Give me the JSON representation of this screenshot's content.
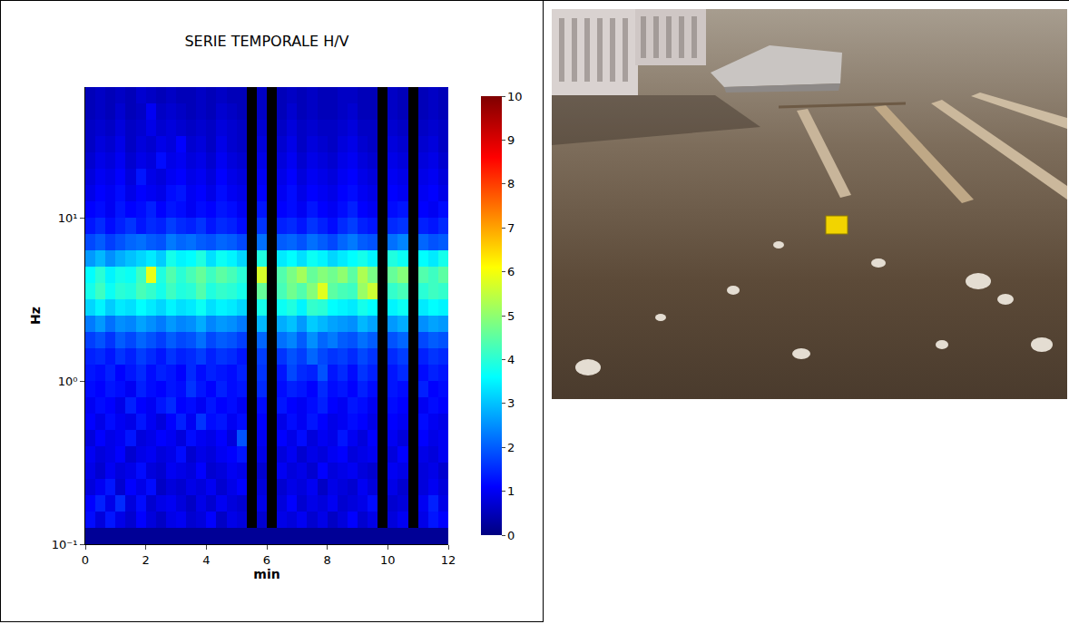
{
  "chart_data": {
    "type": "heatmap",
    "title": "SERIE TEMPORALE H/V",
    "x_label": "min",
    "y_label": "Hz",
    "log": "y",
    "x_edges": [
      0,
      0.33,
      0.67,
      1,
      1.33,
      1.67,
      2,
      2.33,
      2.67,
      3,
      3.33,
      3.67,
      4,
      4.33,
      4.67,
      5,
      5.33,
      5.67,
      6,
      6.33,
      6.67,
      7,
      7.33,
      7.67,
      8,
      8.33,
      8.67,
      9,
      9.33,
      9.67,
      10,
      10.33,
      10.67,
      11,
      11.33,
      11.67,
      12
    ],
    "y_edges": [
      0.1,
      0.126,
      0.158,
      0.2,
      0.251,
      0.316,
      0.398,
      0.501,
      0.631,
      0.794,
      1,
      1.26,
      1.58,
      2,
      2.51,
      3.16,
      3.98,
      5.01,
      6.31,
      7.94,
      10,
      12.6,
      15.8,
      20,
      25.1,
      31.6,
      39.8,
      50.1,
      63.1
    ],
    "z": [
      [
        0.2,
        0.2,
        0.2,
        0.2,
        0.2,
        0.2,
        0.2,
        0.2,
        0.2,
        0.2,
        0.2,
        0.2,
        0.2,
        0.2,
        0.2,
        0.2,
        0.2,
        0.2,
        0.2,
        0.2,
        0.2,
        0.2,
        0.2,
        0.2,
        0.2,
        0.2,
        0.2,
        0.2,
        0.2,
        0.2,
        0.2,
        0.2,
        0.2,
        0.2,
        0.2,
        0.2
      ],
      [
        1.2,
        0.8,
        1.3,
        0.9,
        0.7,
        1.1,
        0.8,
        0.6,
        0.9,
        1.0,
        0.7,
        0.8,
        1.1,
        0.6,
        0.9,
        0.8,
        null,
        0.7,
        null,
        0.9,
        0.8,
        1.0,
        0.7,
        0.9,
        0.6,
        0.8,
        1.1,
        0.7,
        0.9,
        null,
        0.8,
        1.0,
        null,
        0.9,
        1.3,
        1.1
      ],
      [
        1.1,
        1.4,
        0.9,
        1.5,
        0.8,
        1.2,
        0.7,
        0.9,
        1.0,
        0.8,
        0.6,
        0.9,
        0.7,
        1.0,
        0.8,
        0.7,
        null,
        0.9,
        null,
        0.8,
        1.1,
        0.7,
        0.9,
        0.8,
        1.0,
        0.7,
        0.8,
        0.9,
        1.2,
        null,
        0.7,
        0.8,
        null,
        1.0,
        1.4,
        0.9
      ],
      [
        0.8,
        1.0,
        1.3,
        0.7,
        1.1,
        0.9,
        1.2,
        0.6,
        0.8,
        0.7,
        0.9,
        0.8,
        1.0,
        0.7,
        0.9,
        1.1,
        null,
        0.8,
        null,
        0.7,
        0.9,
        0.8,
        1.0,
        0.6,
        0.9,
        0.8,
        0.7,
        1.0,
        0.8,
        null,
        0.9,
        0.7,
        null,
        0.8,
        1.0,
        0.8
      ],
      [
        0.9,
        0.7,
        1.0,
        0.8,
        0.9,
        1.2,
        0.8,
        0.7,
        1.0,
        0.9,
        0.8,
        1.1,
        0.7,
        0.8,
        1.0,
        0.9,
        null,
        0.7,
        null,
        1.0,
        0.8,
        0.9,
        0.7,
        1.1,
        0.8,
        0.9,
        1.0,
        0.8,
        0.7,
        null,
        1.0,
        0.9,
        null,
        0.8,
        0.9,
        0.7
      ],
      [
        1.0,
        0.8,
        0.9,
        1.1,
        0.7,
        0.9,
        1.0,
        0.8,
        0.9,
        1.2,
        0.7,
        0.9,
        0.8,
        1.0,
        1.1,
        1.3,
        null,
        0.9,
        null,
        0.8,
        1.0,
        0.7,
        0.9,
        0.8,
        1.0,
        1.1,
        0.8,
        0.9,
        1.0,
        null,
        0.8,
        1.1,
        null,
        0.9,
        0.8,
        1.0
      ],
      [
        0.8,
        1.1,
        0.9,
        1.0,
        1.3,
        0.8,
        0.9,
        1.1,
        1.0,
        0.8,
        1.2,
        1.0,
        0.9,
        1.1,
        0.8,
        1.9,
        null,
        1.0,
        null,
        1.1,
        0.9,
        1.2,
        0.8,
        1.0,
        0.9,
        1.3,
        1.0,
        0.8,
        1.1,
        null,
        1.0,
        0.8,
        null,
        1.1,
        0.9,
        1.0
      ],
      [
        1.1,
        0.9,
        1.2,
        1.0,
        0.9,
        1.3,
        1.0,
        0.8,
        1.1,
        1.4,
        1.0,
        1.6,
        1.2,
        1.3,
        1.0,
        1.2,
        null,
        1.1,
        null,
        0.9,
        1.2,
        1.0,
        1.3,
        1.1,
        0.9,
        1.0,
        1.2,
        1.1,
        0.9,
        null,
        1.1,
        1.0,
        null,
        1.2,
        1.0,
        0.9
      ],
      [
        1.0,
        1.2,
        1.1,
        0.9,
        1.4,
        1.1,
        1.0,
        1.3,
        1.5,
        1.1,
        1.2,
        1.0,
        1.3,
        1.1,
        1.2,
        1.0,
        null,
        1.2,
        null,
        1.3,
        1.1,
        1.0,
        1.2,
        1.4,
        1.1,
        1.0,
        1.3,
        1.2,
        1.0,
        null,
        1.2,
        1.1,
        null,
        1.0,
        1.2,
        1.1
      ],
      [
        1.2,
        1.1,
        1.3,
        1.2,
        1.0,
        1.4,
        1.2,
        1.1,
        1.3,
        1.2,
        1.6,
        1.3,
        1.1,
        1.4,
        1.2,
        1.3,
        null,
        1.5,
        null,
        1.2,
        1.4,
        1.3,
        1.1,
        1.5,
        1.2,
        1.3,
        1.1,
        1.4,
        1.2,
        null,
        1.3,
        1.2,
        null,
        1.4,
        1.1,
        1.2
      ],
      [
        1.3,
        1.2,
        1.4,
        1.1,
        1.3,
        1.5,
        1.2,
        1.4,
        1.3,
        1.1,
        1.5,
        1.2,
        1.4,
        1.3,
        1.2,
        1.4,
        null,
        1.6,
        null,
        1.3,
        1.8,
        1.5,
        1.4,
        1.9,
        1.3,
        1.5,
        1.2,
        1.6,
        1.4,
        null,
        1.3,
        1.5,
        null,
        1.2,
        1.4,
        1.3
      ],
      [
        1.4,
        1.5,
        1.3,
        1.6,
        1.4,
        1.7,
        1.5,
        1.3,
        1.6,
        1.4,
        1.5,
        1.7,
        1.4,
        1.6,
        1.5,
        1.3,
        null,
        1.7,
        null,
        1.6,
        1.9,
        1.7,
        2.1,
        1.8,
        1.6,
        1.7,
        1.5,
        1.8,
        1.6,
        null,
        1.5,
        1.7,
        null,
        1.4,
        1.6,
        1.5
      ],
      [
        1.7,
        1.9,
        1.6,
        2.0,
        1.8,
        2.1,
        1.9,
        1.7,
        2.0,
        1.8,
        1.9,
        2.2,
        1.8,
        2.0,
        1.9,
        1.7,
        null,
        2.1,
        null,
        2.2,
        2.4,
        2.0,
        2.5,
        2.1,
        2.3,
        2.0,
        1.9,
        2.2,
        2.0,
        null,
        1.9,
        2.1,
        null,
        1.8,
        2.0,
        1.9
      ],
      [
        2.3,
        2.6,
        2.2,
        2.5,
        2.4,
        2.7,
        2.5,
        2.3,
        2.6,
        2.4,
        2.5,
        2.8,
        2.4,
        2.6,
        2.5,
        2.3,
        null,
        2.9,
        null,
        2.8,
        3.0,
        2.6,
        3.1,
        2.9,
        2.7,
        2.6,
        2.5,
        2.9,
        2.7,
        null,
        2.6,
        2.8,
        null,
        2.5,
        2.7,
        2.6
      ],
      [
        3.2,
        3.5,
        3.1,
        3.4,
        3.3,
        3.6,
        3.4,
        3.2,
        3.5,
        3.3,
        3.4,
        3.7,
        3.3,
        3.5,
        3.4,
        3.2,
        null,
        3.8,
        null,
        3.7,
        3.9,
        3.5,
        4.1,
        4.0,
        3.6,
        3.5,
        3.4,
        3.8,
        3.6,
        null,
        3.5,
        3.7,
        null,
        3.4,
        3.6,
        3.5
      ],
      [
        3.8,
        4.2,
        3.7,
        4.0,
        3.9,
        4.3,
        4.1,
        3.8,
        4.2,
        3.9,
        4.0,
        4.4,
        3.9,
        4.1,
        4.0,
        3.8,
        null,
        4.6,
        null,
        4.3,
        4.7,
        4.4,
        4.9,
        5.8,
        4.5,
        4.3,
        4.2,
        5.1,
        5.6,
        null,
        4.1,
        4.3,
        null,
        4.0,
        4.2,
        4.1
      ],
      [
        3.6,
        4.0,
        3.5,
        3.8,
        3.7,
        4.2,
        5.9,
        3.9,
        4.4,
        4.0,
        4.3,
        4.6,
        4.2,
        4.5,
        4.3,
        4.0,
        null,
        5.7,
        null,
        4.4,
        4.8,
        5.2,
        4.6,
        4.9,
        4.7,
        5.0,
        4.5,
        5.3,
        4.8,
        null,
        4.6,
        4.9,
        null,
        4.4,
        4.2,
        4.5
      ],
      [
        2.6,
        2.9,
        2.5,
        2.8,
        3.0,
        3.2,
        3.4,
        3.1,
        3.8,
        3.5,
        3.6,
        3.9,
        3.3,
        3.7,
        3.5,
        3.2,
        null,
        3.9,
        null,
        3.4,
        3.6,
        3.3,
        3.7,
        3.5,
        3.2,
        3.4,
        3.6,
        3.8,
        3.5,
        null,
        3.9,
        3.7,
        null,
        3.6,
        3.4,
        3.8
      ],
      [
        1.8,
        2.0,
        1.7,
        1.9,
        2.1,
        2.2,
        2.0,
        1.9,
        2.3,
        2.1,
        2.2,
        2.0,
        1.9,
        2.1,
        2.0,
        1.8,
        null,
        2.2,
        null,
        2.0,
        2.1,
        1.9,
        2.2,
        2.0,
        1.8,
        2.1,
        2.3,
        2.0,
        1.9,
        null,
        2.2,
        2.4,
        null,
        2.1,
        1.9,
        2.0
      ],
      [
        1.3,
        1.5,
        1.2,
        1.4,
        1.6,
        1.3,
        1.5,
        1.4,
        1.7,
        1.5,
        1.4,
        1.6,
        1.3,
        1.5,
        1.4,
        1.2,
        null,
        1.6,
        null,
        1.4,
        1.5,
        1.3,
        1.6,
        1.4,
        1.2,
        1.5,
        1.7,
        1.4,
        1.3,
        null,
        1.5,
        1.6,
        null,
        1.4,
        1.3,
        1.5
      ],
      [
        1.1,
        1.2,
        1.0,
        1.3,
        1.1,
        1.2,
        1.4,
        1.1,
        1.3,
        1.2,
        1.0,
        1.2,
        1.1,
        1.3,
        1.2,
        1.0,
        null,
        1.3,
        null,
        1.1,
        1.2,
        1.0,
        1.3,
        1.1,
        1.0,
        1.2,
        1.4,
        1.1,
        1.0,
        null,
        1.2,
        1.3,
        null,
        1.1,
        1.0,
        1.2
      ],
      [
        0.9,
        1.1,
        1.0,
        1.2,
        0.9,
        1.1,
        1.0,
        0.9,
        1.2,
        1.3,
        1.0,
        1.1,
        0.9,
        1.2,
        1.0,
        0.9,
        null,
        1.1,
        null,
        1.0,
        1.2,
        0.9,
        1.1,
        1.0,
        0.9,
        1.1,
        1.2,
        1.0,
        0.9,
        null,
        1.1,
        1.0,
        null,
        1.0,
        1.1,
        0.9
      ],
      [
        0.8,
        1.0,
        0.9,
        1.1,
        0.8,
        1.3,
        0.9,
        0.8,
        1.0,
        1.1,
        0.9,
        1.0,
        0.8,
        1.1,
        0.9,
        0.8,
        null,
        1.0,
        null,
        0.9,
        1.1,
        0.8,
        1.0,
        0.9,
        0.8,
        1.0,
        1.1,
        0.9,
        0.8,
        null,
        1.0,
        0.9,
        null,
        0.9,
        1.0,
        0.8
      ],
      [
        0.7,
        0.9,
        0.8,
        1.0,
        0.7,
        0.9,
        0.8,
        1.2,
        0.9,
        1.0,
        0.8,
        0.9,
        0.7,
        1.0,
        0.8,
        0.7,
        null,
        0.9,
        null,
        0.8,
        1.0,
        0.7,
        0.9,
        0.8,
        0.7,
        0.9,
        1.0,
        0.8,
        0.7,
        null,
        0.9,
        0.8,
        null,
        0.8,
        0.9,
        0.7
      ],
      [
        0.6,
        0.8,
        0.7,
        0.9,
        0.6,
        0.8,
        0.7,
        0.9,
        0.8,
        1.1,
        0.7,
        0.8,
        0.6,
        0.9,
        0.7,
        0.6,
        null,
        0.8,
        null,
        0.7,
        0.9,
        0.6,
        0.8,
        0.7,
        0.6,
        0.8,
        0.9,
        0.7,
        0.6,
        null,
        0.8,
        0.7,
        null,
        0.7,
        0.8,
        0.6
      ],
      [
        0.6,
        0.7,
        0.6,
        0.8,
        0.6,
        0.7,
        0.9,
        0.7,
        0.8,
        0.7,
        0.6,
        0.7,
        0.6,
        0.8,
        0.7,
        0.6,
        null,
        0.7,
        null,
        0.6,
        0.8,
        0.6,
        0.7,
        0.6,
        0.6,
        0.7,
        0.8,
        0.6,
        0.6,
        null,
        0.7,
        0.6,
        null,
        0.6,
        0.7,
        0.6
      ],
      [
        0.5,
        0.6,
        0.5,
        0.7,
        0.5,
        0.6,
        1.0,
        0.6,
        0.7,
        0.6,
        0.5,
        0.6,
        0.5,
        0.7,
        0.6,
        0.5,
        null,
        0.6,
        null,
        0.5,
        0.7,
        0.5,
        0.6,
        0.5,
        0.5,
        0.6,
        0.7,
        0.5,
        0.5,
        null,
        0.6,
        0.5,
        null,
        0.5,
        0.6,
        0.5
      ],
      [
        0.5,
        0.6,
        0.5,
        0.6,
        0.5,
        0.7,
        0.6,
        0.5,
        0.6,
        0.5,
        0.5,
        0.6,
        0.5,
        0.6,
        0.5,
        0.5,
        null,
        0.6,
        null,
        0.5,
        0.6,
        0.5,
        0.6,
        0.5,
        0.5,
        0.6,
        0.6,
        0.5,
        0.5,
        null,
        0.6,
        0.5,
        null,
        0.5,
        0.6,
        0.5
      ]
    ],
    "xlim": [
      0,
      12
    ],
    "xticks": [
      0,
      2,
      4,
      6,
      8,
      10,
      12
    ],
    "ylim": [
      0.1,
      63.1
    ],
    "yticks": [
      {
        "value": 0.1,
        "label": "10⁻¹"
      },
      {
        "value": 1,
        "label": "10⁰"
      },
      {
        "value": 10,
        "label": "10¹"
      }
    ],
    "colorbar": {
      "range": [
        0,
        10
      ],
      "ticks": [
        0,
        1,
        2,
        3,
        4,
        5,
        6,
        7,
        8,
        9,
        10
      ]
    }
  }
}
